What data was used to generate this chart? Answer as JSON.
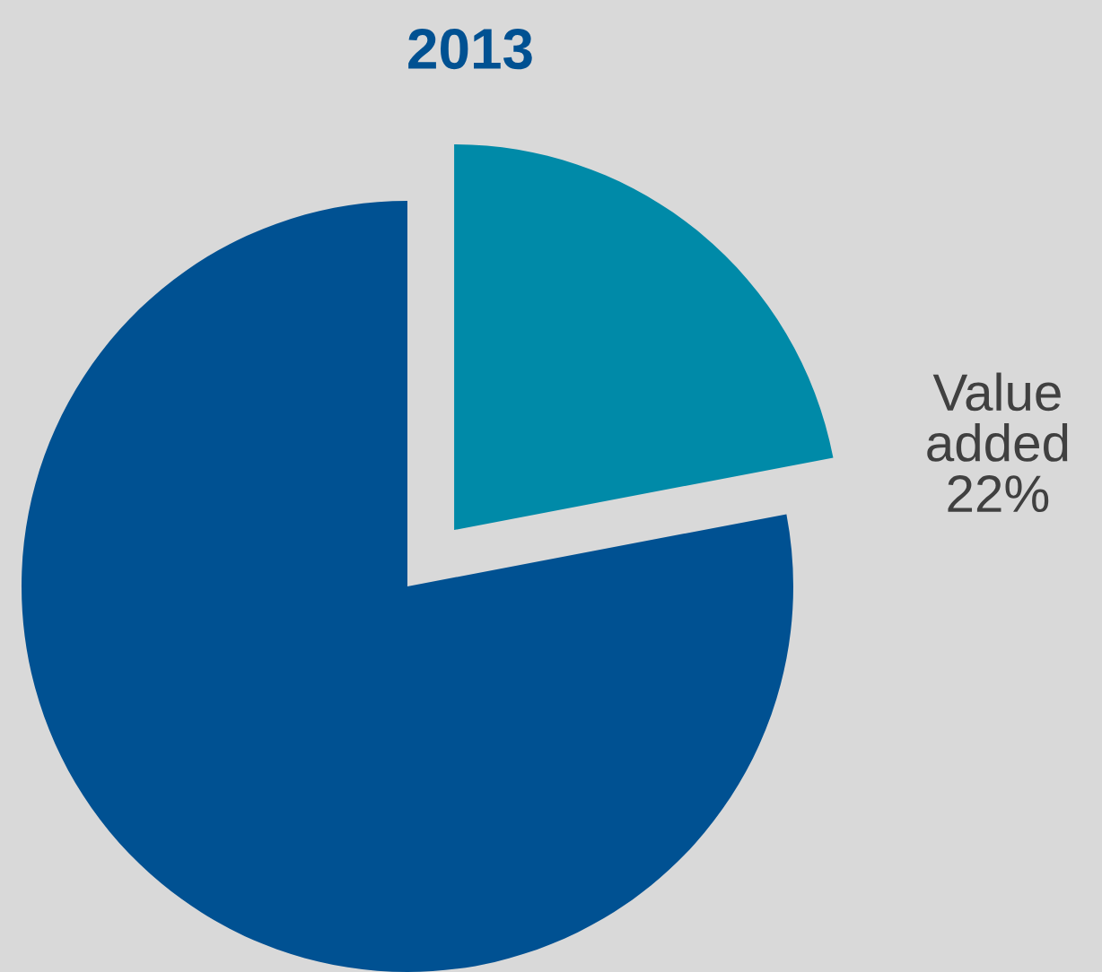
{
  "chart_data": {
    "type": "pie",
    "title": "2013",
    "categories": [
      "Value added",
      null
    ],
    "values": [
      22,
      78
    ],
    "value_labels": [
      "22%",
      null
    ],
    "colors": [
      "#008aa8",
      "#005192"
    ],
    "legend": false
  }
}
